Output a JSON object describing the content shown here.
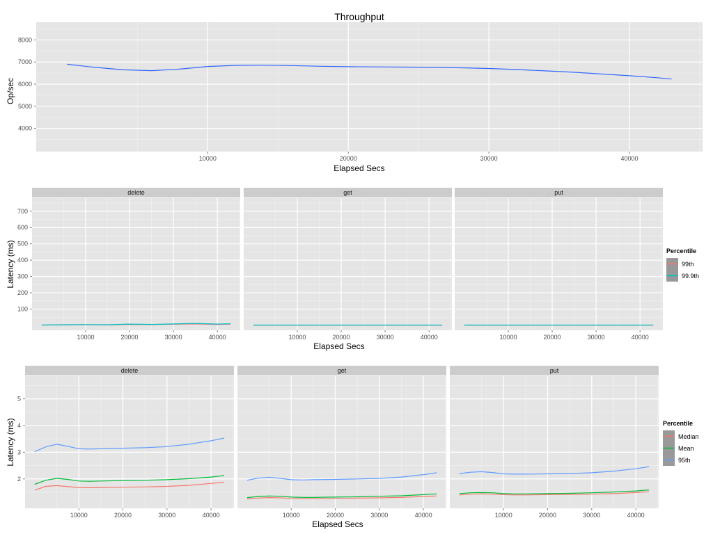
{
  "chart_data": [
    {
      "type": "line",
      "title": "Throughput",
      "xlabel": "Elapsed Secs",
      "ylabel": "Op/sec",
      "xlim": [
        -2200,
        45200
      ],
      "ylim": [
        2950,
        8800
      ],
      "xticks": [
        10000,
        20000,
        30000,
        40000
      ],
      "yticks": [
        4000,
        5000,
        6000,
        7000,
        8000
      ],
      "grid": true,
      "series": [
        {
          "color": "#3366ff",
          "x": [
            0,
            2000,
            4000,
            6000,
            8000,
            10000,
            12000,
            14000,
            16000,
            18000,
            20000,
            22000,
            24000,
            26000,
            28000,
            30000,
            32000,
            34000,
            36000,
            38000,
            40000,
            42000,
            43000
          ],
          "y": [
            6900,
            6760,
            6650,
            6610,
            6680,
            6800,
            6850,
            6855,
            6840,
            6810,
            6790,
            6780,
            6770,
            6760,
            6740,
            6710,
            6660,
            6600,
            6540,
            6460,
            6380,
            6290,
            6230
          ]
        }
      ]
    },
    {
      "type": "line",
      "xlabel": "Elapsed Secs",
      "ylabel": "Latency (ms)",
      "xlim": [
        -2200,
        45200
      ],
      "ylim": [
        -30,
        780
      ],
      "xticks": [
        10000,
        20000,
        30000,
        40000
      ],
      "yticks": [
        100,
        200,
        300,
        400,
        500,
        600,
        700
      ],
      "grid": true,
      "facets": [
        "delete",
        "get",
        "put"
      ],
      "legend": {
        "title": "Percentile",
        "position": "right"
      },
      "series": [
        {
          "name": "99th",
          "color": "#f8766d",
          "x": [
            0,
            5000,
            10000,
            15000,
            20000,
            25000,
            30000,
            35000,
            40000,
            43000
          ],
          "values": {
            "delete": [
              2,
              3,
              4,
              3,
              6,
              5,
              7,
              9,
              6,
              8
            ],
            "get": [
              1,
              1,
              1,
              1,
              1,
              1,
              1,
              1,
              1,
              1
            ],
            "put": [
              1,
              1,
              1,
              1,
              1,
              1,
              1,
              1,
              1,
              1
            ]
          }
        },
        {
          "name": "99.9th",
          "color": "#00bfc4",
          "x": [
            0,
            5000,
            10000,
            15000,
            20000,
            25000,
            30000,
            35000,
            40000,
            43000
          ],
          "values": {
            "delete": [
              2,
              4,
              5,
              4,
              8,
              6,
              9,
              12,
              8,
              10
            ],
            "get": [
              2,
              2,
              2,
              2,
              2,
              2,
              2,
              2,
              2,
              2
            ],
            "put": [
              2,
              2,
              2,
              2,
              2,
              2,
              2,
              2,
              2,
              2
            ]
          }
        }
      ]
    },
    {
      "type": "line",
      "xlabel": "Elapsed Secs",
      "ylabel": "Latency (ms)",
      "xlim": [
        -2200,
        45200
      ],
      "ylim": [
        0.9,
        5.85
      ],
      "xticks": [
        10000,
        20000,
        30000,
        40000
      ],
      "yticks": [
        2,
        3,
        4,
        5
      ],
      "grid": true,
      "facets": [
        "delete",
        "get",
        "put"
      ],
      "legend": {
        "title": "Percentile",
        "position": "right"
      },
      "series": [
        {
          "name": "Median",
          "color": "#f8766d",
          "x": [
            0,
            2500,
            5000,
            7500,
            10000,
            12500,
            15000,
            20000,
            25000,
            30000,
            35000,
            40000,
            43000
          ],
          "values": {
            "delete": [
              1.58,
              1.72,
              1.75,
              1.71,
              1.68,
              1.67,
              1.68,
              1.69,
              1.7,
              1.72,
              1.76,
              1.83,
              1.88
            ],
            "get": [
              1.25,
              1.28,
              1.3,
              1.29,
              1.27,
              1.26,
              1.26,
              1.27,
              1.28,
              1.29,
              1.31,
              1.34,
              1.36
            ],
            "put": [
              1.4,
              1.43,
              1.44,
              1.43,
              1.41,
              1.4,
              1.4,
              1.41,
              1.42,
              1.43,
              1.45,
              1.49,
              1.52
            ]
          }
        },
        {
          "name": "Mean",
          "color": "#00ba38",
          "x": [
            0,
            2500,
            5000,
            7500,
            10000,
            12500,
            15000,
            20000,
            25000,
            30000,
            35000,
            40000,
            43000
          ],
          "values": {
            "delete": [
              1.8,
              1.95,
              2.02,
              1.98,
              1.92,
              1.91,
              1.92,
              1.94,
              1.95,
              1.97,
              2.01,
              2.07,
              2.13
            ],
            "get": [
              1.3,
              1.34,
              1.36,
              1.35,
              1.32,
              1.31,
              1.31,
              1.32,
              1.33,
              1.35,
              1.37,
              1.41,
              1.44
            ],
            "put": [
              1.45,
              1.48,
              1.49,
              1.48,
              1.45,
              1.44,
              1.44,
              1.45,
              1.46,
              1.48,
              1.51,
              1.55,
              1.59
            ]
          }
        },
        {
          "name": "95th",
          "color": "#619cff",
          "x": [
            0,
            2500,
            5000,
            7500,
            10000,
            12500,
            15000,
            20000,
            25000,
            30000,
            35000,
            40000,
            43000
          ],
          "values": {
            "delete": [
              3.02,
              3.2,
              3.3,
              3.22,
              3.13,
              3.12,
              3.13,
              3.15,
              3.17,
              3.21,
              3.3,
              3.43,
              3.53
            ],
            "get": [
              1.95,
              2.03,
              2.06,
              2.02,
              1.97,
              1.96,
              1.97,
              1.98,
              2.0,
              2.02,
              2.07,
              2.16,
              2.23
            ],
            "put": [
              2.2,
              2.25,
              2.27,
              2.24,
              2.19,
              2.18,
              2.18,
              2.19,
              2.2,
              2.23,
              2.29,
              2.38,
              2.46
            ]
          }
        }
      ]
    }
  ]
}
